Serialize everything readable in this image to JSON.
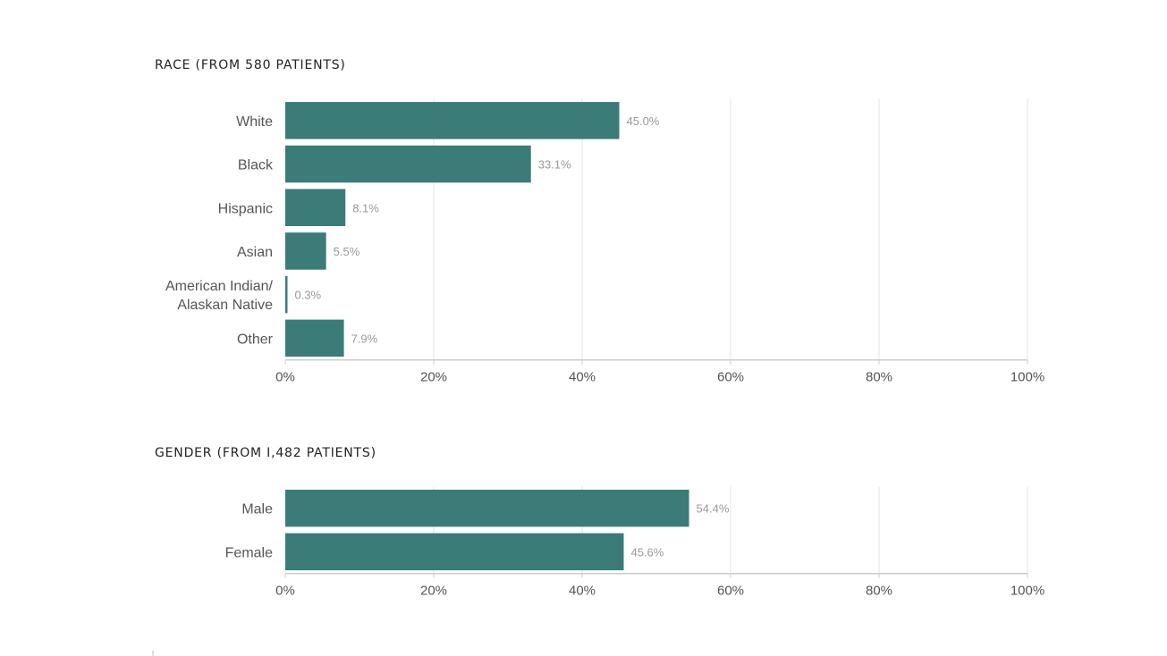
{
  "colors": {
    "bar": "#3b7b78",
    "grid": "#e6e6e6",
    "axis": "#cccccc",
    "label": "#555555",
    "value_label": "#999999"
  },
  "chart_data": [
    {
      "type": "bar",
      "orientation": "horizontal",
      "title": "RACE (FROM 580 PATIENTS)",
      "categories": [
        "White",
        "Black",
        "Hispanic",
        "Asian",
        "American Indian/ Alaskan Native",
        "Other"
      ],
      "category_lines": [
        [
          "White"
        ],
        [
          "Black"
        ],
        [
          "Hispanic"
        ],
        [
          "Asian"
        ],
        [
          "American Indian/",
          "Alaskan Native"
        ],
        [
          "Other"
        ]
      ],
      "values": [
        45.0,
        33.1,
        8.1,
        5.5,
        0.3,
        7.9
      ],
      "value_labels": [
        "45.0%",
        "33.1%",
        "8.1%",
        "5.5%",
        "0.3%",
        "7.9%"
      ],
      "xlim": [
        0,
        100
      ],
      "xticks": [
        0,
        20,
        40,
        60,
        80,
        100
      ],
      "xtick_labels": [
        "0%",
        "20%",
        "40%",
        "60%",
        "80%",
        "100%"
      ],
      "grid": true,
      "xlabel": "",
      "ylabel": ""
    },
    {
      "type": "bar",
      "orientation": "horizontal",
      "title": "GENDER (FROM I,482 PATIENTS)",
      "categories": [
        "Male",
        "Female"
      ],
      "category_lines": [
        [
          "Male"
        ],
        [
          "Female"
        ]
      ],
      "values": [
        54.4,
        45.6
      ],
      "value_labels": [
        "54.4%",
        "45.6%"
      ],
      "xlim": [
        0,
        100
      ],
      "xticks": [
        0,
        20,
        40,
        60,
        80,
        100
      ],
      "xtick_labels": [
        "0%",
        "20%",
        "40%",
        "60%",
        "80%",
        "100%"
      ],
      "grid": true,
      "xlabel": "",
      "ylabel": ""
    }
  ]
}
